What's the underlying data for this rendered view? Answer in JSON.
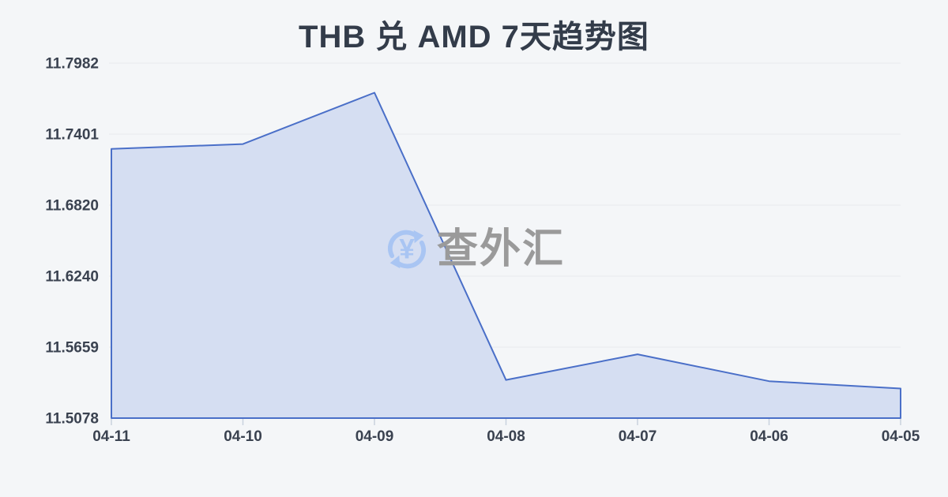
{
  "title": "THB 兑 AMD 7天趋势图",
  "watermark": {
    "icon": "currency-exchange-refresh-icon",
    "icon_symbol": "¥",
    "text": "查外汇"
  },
  "colors": {
    "background": "#f4f6f8",
    "title_text": "#333c4a",
    "axis_text": "#3a4250",
    "line": "#4a6fc8",
    "area_fill": "#d5def2",
    "gridline": "#e8eaee",
    "tick": "#c9d2de",
    "watermark_text": "#9a9a9a",
    "watermark_icon": "#a9c5f3"
  },
  "chart_data": {
    "type": "area",
    "title": "THB 兑 AMD 7天趋势图",
    "categories": [
      "04-11",
      "04-10",
      "04-09",
      "04-08",
      "04-07",
      "04-06",
      "04-05"
    ],
    "values": [
      11.728,
      11.732,
      11.774,
      11.539,
      11.56,
      11.538,
      11.532
    ],
    "y_ticks": [
      "11.7982",
      "11.7401",
      "11.6820",
      "11.6240",
      "11.5659",
      "11.5078"
    ],
    "ylim": [
      11.5078,
      11.7982
    ],
    "xlabel": "",
    "ylabel": "",
    "grid": true,
    "legend": "none"
  }
}
